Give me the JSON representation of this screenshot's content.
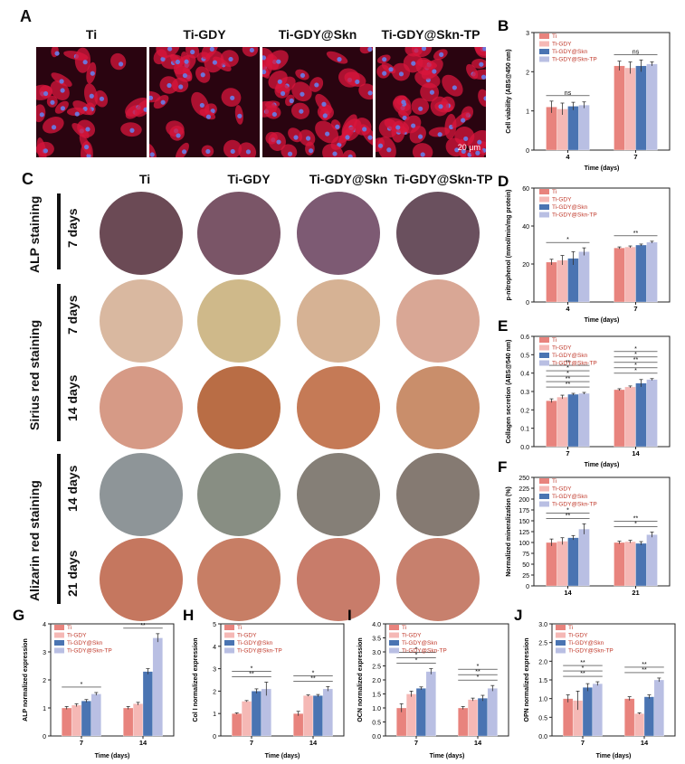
{
  "panel_letters": {
    "A": "A",
    "B": "B",
    "C": "C",
    "D": "D",
    "E": "E",
    "F": "F",
    "G": "G",
    "H": "H",
    "I": "I",
    "J": "J"
  },
  "panel_a": {
    "columns": [
      "Ti",
      "Ti-GDY",
      "Ti-GDY@Skn",
      "Ti-GDY@Skn-TP"
    ],
    "scale_bar": "20 μm"
  },
  "panel_c": {
    "columns": [
      "Ti",
      "Ti-GDY",
      "Ti-GDY@Skn",
      "Ti-GDY@Skn-TP"
    ],
    "groups": [
      "ALP staining",
      "Sirius red staining",
      "Alizarin red staining"
    ],
    "rows": [
      "7 days",
      "7 days",
      "14 days",
      "14 days",
      "21 days"
    ],
    "dish_colors": [
      [
        "#6b4a55",
        "#7a5567",
        "#7d5a73",
        "#6a505e"
      ],
      [
        "#d9b8a0",
        "#cfb98a",
        "#d6b294",
        "#d9a795"
      ],
      [
        "#d69a86",
        "#b96d45",
        "#c57a56",
        "#c98e6b"
      ],
      [
        "#8e9598",
        "#888e83",
        "#857f77",
        "#857a72"
      ],
      [
        "#c5775f",
        "#c77e65",
        "#c87c6a",
        "#c7806d"
      ]
    ]
  },
  "colors": {
    "Ti": "#e8837d",
    "Ti-GDY": "#f5b8b5",
    "Ti-GDY@Skn": "#4a74b2",
    "Ti-GDY@Skn-TP": "#b9bfe3"
  },
  "chart_data": [
    {
      "panel": "B",
      "type": "bar",
      "legend": [
        "Ti",
        "Ti-GDY",
        "Ti-GDY@Skn",
        "Ti-GDY@Skn-TP"
      ],
      "categories": [
        "4",
        "7"
      ],
      "series": [
        {
          "name": "Ti",
          "values": [
            1.1,
            2.15
          ],
          "errors": [
            0.15,
            0.12
          ]
        },
        {
          "name": "Ti-GDY",
          "values": [
            1.05,
            2.1
          ],
          "errors": [
            0.15,
            0.15
          ]
        },
        {
          "name": "Ti-GDY@Skn",
          "values": [
            1.12,
            2.15
          ],
          "errors": [
            0.1,
            0.15
          ]
        },
        {
          "name": "Ti-GDY@Skn-TP",
          "values": [
            1.15,
            2.2
          ],
          "errors": [
            0.08,
            0.05
          ]
        }
      ],
      "ylim": [
        0,
        3
      ],
      "yticks": [
        0,
        1,
        2,
        3
      ],
      "xlabel": "Time (days)",
      "ylabel": "Cell viability (ABS@450 nm)",
      "annotations": [
        "ns",
        "ns"
      ]
    },
    {
      "panel": "D",
      "type": "bar",
      "legend": [
        "Ti",
        "Ti-GDY",
        "Ti-GDY@Skn",
        "Ti-GDY@Skn-TP"
      ],
      "categories": [
        "4",
        "7"
      ],
      "series": [
        {
          "name": "Ti",
          "values": [
            21,
            28.5
          ],
          "errors": [
            1.5,
            0.5
          ]
        },
        {
          "name": "Ti-GDY",
          "values": [
            22,
            29
          ],
          "errors": [
            2.5,
            0.5
          ]
        },
        {
          "name": "Ti-GDY@Skn",
          "values": [
            23,
            30
          ],
          "errors": [
            3.5,
            0.5
          ]
        },
        {
          "name": "Ti-GDY@Skn-TP",
          "values": [
            26.5,
            31.5
          ],
          "errors": [
            2.0,
            0.5
          ]
        }
      ],
      "ylim": [
        0,
        60
      ],
      "yticks": [
        0,
        20,
        40,
        60
      ],
      "xlabel": "Time (days)",
      "ylabel": "p-nitrophenol (mmol/min/mg protein)",
      "annotations": [
        "*",
        "**"
      ]
    },
    {
      "panel": "E",
      "type": "bar",
      "legend": [
        "Ti",
        "Ti-GDY",
        "Ti-GDY@Skn",
        "Ti-GDY@Skn-TP"
      ],
      "categories": [
        "7",
        "14"
      ],
      "series": [
        {
          "name": "Ti",
          "values": [
            0.25,
            0.31
          ],
          "errors": [
            0.01,
            0.005
          ]
        },
        {
          "name": "Ti-GDY",
          "values": [
            0.27,
            0.325
          ],
          "errors": [
            0.01,
            0.005
          ]
        },
        {
          "name": "Ti-GDY@Skn",
          "values": [
            0.285,
            0.345
          ],
          "errors": [
            0.005,
            0.02
          ]
        },
        {
          "name": "Ti-GDY@Skn-TP",
          "values": [
            0.29,
            0.365
          ],
          "errors": [
            0.005,
            0.005
          ]
        }
      ],
      "ylim": [
        0.0,
        0.6
      ],
      "yticks": [
        0.0,
        0.1,
        0.2,
        0.3,
        0.4,
        0.5,
        0.6
      ],
      "xlabel": "Time (days)",
      "ylabel": "Collagen secretion (ABS@540 nm)",
      "annotations": [
        "**",
        "**",
        "*",
        "*",
        "**",
        "*",
        "*",
        "**",
        "*",
        "*"
      ]
    },
    {
      "panel": "F",
      "type": "bar",
      "legend": [
        "Ti",
        "Ti-GDY",
        "Ti-GDY@Skn",
        "Ti-GDY@Skn-TP"
      ],
      "categories": [
        "14",
        "21"
      ],
      "series": [
        {
          "name": "Ti",
          "values": [
            100,
            100
          ],
          "errors": [
            8,
            3
          ]
        },
        {
          "name": "Ti-GDY",
          "values": [
            103,
            102
          ],
          "errors": [
            8,
            3
          ]
        },
        {
          "name": "Ti-GDY@Skn",
          "values": [
            111,
            98
          ],
          "errors": [
            5,
            4
          ]
        },
        {
          "name": "Ti-GDY@Skn-TP",
          "values": [
            131,
            118
          ],
          "errors": [
            12,
            6
          ]
        }
      ],
      "ylim": [
        0,
        250
      ],
      "yticks": [
        0,
        25,
        50,
        75,
        100,
        125,
        150,
        175,
        200,
        225,
        250
      ],
      "xlabel": "",
      "ylabel": "Normalized mineralization (%)",
      "annotations": [
        "**",
        "*",
        "*",
        "**"
      ]
    },
    {
      "panel": "G",
      "type": "bar",
      "legend": [
        "Ti",
        "Ti-GDY",
        "Ti-GDY@Skn",
        "Ti-GDY@Skn-TP"
      ],
      "categories": [
        "7",
        "14"
      ],
      "series": [
        {
          "name": "Ti",
          "values": [
            1.0,
            1.0
          ],
          "errors": [
            0.05,
            0.05
          ]
        },
        {
          "name": "Ti-GDY",
          "values": [
            1.1,
            1.15
          ],
          "errors": [
            0.05,
            0.05
          ]
        },
        {
          "name": "Ti-GDY@Skn",
          "values": [
            1.25,
            2.3
          ],
          "errors": [
            0.05,
            0.1
          ]
        },
        {
          "name": "Ti-GDY@Skn-TP",
          "values": [
            1.5,
            3.5
          ],
          "errors": [
            0.05,
            0.15
          ]
        }
      ],
      "ylim": [
        0,
        4
      ],
      "yticks": [
        0,
        1,
        2,
        3,
        4
      ],
      "xlabel": "Time (days)",
      "ylabel": "ALP normalized expression",
      "annotations": [
        "*",
        "**"
      ]
    },
    {
      "panel": "H",
      "type": "bar",
      "legend": [
        "Ti",
        "Ti-GDY",
        "Ti-GDY@Skn",
        "Ti-GDY@Skn-TP"
      ],
      "categories": [
        "7",
        "14"
      ],
      "series": [
        {
          "name": "Ti",
          "values": [
            1.0,
            1.0
          ],
          "errors": [
            0.03,
            0.1
          ]
        },
        {
          "name": "Ti-GDY",
          "values": [
            1.55,
            1.8
          ],
          "errors": [
            0.03,
            0.03
          ]
        },
        {
          "name": "Ti-GDY@Skn",
          "values": [
            2.0,
            1.8
          ],
          "errors": [
            0.1,
            0.05
          ]
        },
        {
          "name": "Ti-GDY@Skn-TP",
          "values": [
            2.1,
            2.1
          ],
          "errors": [
            0.3,
            0.1
          ]
        }
      ],
      "ylim": [
        0,
        5
      ],
      "yticks": [
        0,
        1,
        2,
        3,
        4,
        5
      ],
      "xlabel": "Time (days)",
      "ylabel": "Col Ⅰ normalized expression",
      "annotations": [
        "**",
        "*",
        "**",
        "*"
      ]
    },
    {
      "panel": "I",
      "type": "bar",
      "legend": [
        "Ti",
        "Ti-GDY",
        "Ti-GDY@Skn",
        "Ti-GDY@Skn-TP"
      ],
      "categories": [
        "7",
        "14"
      ],
      "series": [
        {
          "name": "Ti",
          "values": [
            1.0,
            1.0
          ],
          "errors": [
            0.15,
            0.05
          ]
        },
        {
          "name": "Ti-GDY",
          "values": [
            1.5,
            1.3
          ],
          "errors": [
            0.1,
            0.05
          ]
        },
        {
          "name": "Ti-GDY@Skn",
          "values": [
            1.7,
            1.35
          ],
          "errors": [
            0.05,
            0.1
          ]
        },
        {
          "name": "Ti-GDY@Skn-TP",
          "values": [
            2.3,
            1.7
          ],
          "errors": [
            0.1,
            0.1
          ]
        }
      ],
      "ylim": [
        0.0,
        4.0
      ],
      "yticks": [
        0.0,
        0.5,
        1.0,
        1.5,
        2.0,
        2.5,
        3.0,
        3.5,
        4.0
      ],
      "xlabel": "Time (days)",
      "ylabel": "OCN normalized expression",
      "annotations": [
        "*",
        "*",
        "*",
        "*",
        "**",
        "*"
      ]
    },
    {
      "panel": "J",
      "type": "bar",
      "legend": [
        "Ti",
        "Ti-GDY",
        "Ti-GDY@Skn",
        "Ti-GDY@Skn-TP"
      ],
      "categories": [
        "7",
        "14"
      ],
      "series": [
        {
          "name": "Ti",
          "values": [
            1.0,
            1.0
          ],
          "errors": [
            0.1,
            0.05
          ]
        },
        {
          "name": "Ti-GDY",
          "values": [
            0.95,
            0.6
          ],
          "errors": [
            0.25,
            0.02
          ]
        },
        {
          "name": "Ti-GDY@Skn",
          "values": [
            1.3,
            1.05
          ],
          "errors": [
            0.1,
            0.05
          ]
        },
        {
          "name": "Ti-GDY@Skn-TP",
          "values": [
            1.4,
            1.5
          ],
          "errors": [
            0.05,
            0.05
          ]
        }
      ],
      "ylim": [
        0.0,
        3.0
      ],
      "yticks": [
        0.0,
        0.5,
        1.0,
        1.5,
        2.0,
        2.5,
        3.0
      ],
      "xlabel": "Time (days)",
      "ylabel": "OPN normalized expression",
      "annotations": [
        "**",
        "*",
        "**",
        "**",
        "**"
      ]
    }
  ]
}
